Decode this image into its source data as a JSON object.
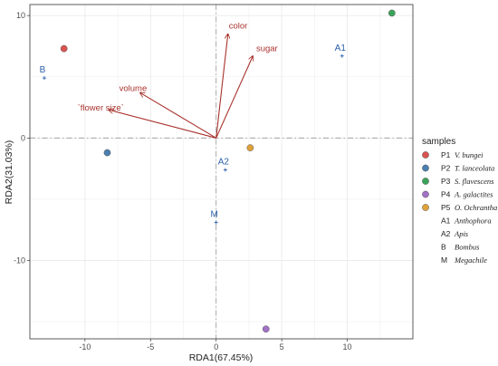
{
  "chart_data": {
    "type": "scatter",
    "title": "",
    "xlabel": "RDA1(67.45%)",
    "ylabel": "RDA2(31.03%)",
    "xlim": [
      -14.2,
      15
    ],
    "ylim": [
      -16.4,
      10.9
    ],
    "xticks": [
      -10,
      -5,
      0,
      5,
      10
    ],
    "yticks": [
      -10,
      0,
      10
    ],
    "grid": true,
    "reference_lines": {
      "x": 0,
      "y": 0
    },
    "legend": {
      "title": "samples",
      "placement": "right",
      "entries": [
        {
          "code": "P1",
          "name": "V. bungei",
          "color": "#d9534f",
          "marker": "circle"
        },
        {
          "code": "P2",
          "name": "T. lanceolata",
          "color": "#4a7fb0",
          "marker": "circle"
        },
        {
          "code": "P3",
          "name": "S. flavescens",
          "color": "#3aa35a",
          "marker": "circle"
        },
        {
          "code": "P4",
          "name": "A. galactites",
          "color": "#a372c6",
          "marker": "circle"
        },
        {
          "code": "P5",
          "name": "O. Ochrantha",
          "color": "#e0a33a",
          "marker": "circle"
        },
        {
          "code": "A1",
          "name": "Anthophora",
          "marker": "plus"
        },
        {
          "code": "A2",
          "name": "Apis",
          "marker": "plus"
        },
        {
          "code": "B",
          "name": "Bombus",
          "marker": "plus"
        },
        {
          "code": "M",
          "name": "Megachile",
          "marker": "plus"
        }
      ]
    },
    "samples": [
      {
        "code": "P1",
        "x": -11.6,
        "y": 7.3
      },
      {
        "code": "P2",
        "x": -8.3,
        "y": -1.2
      },
      {
        "code": "P3",
        "x": 13.4,
        "y": 10.2
      },
      {
        "code": "P4",
        "x": 3.8,
        "y": -15.6
      },
      {
        "code": "P5",
        "x": 2.6,
        "y": -0.8
      }
    ],
    "species": [
      {
        "label": "A1",
        "x": 9.6,
        "y": 6.7
      },
      {
        "label": "A2",
        "x": 0.7,
        "y": -2.6
      },
      {
        "label": "B",
        "x": -13.1,
        "y": 4.9
      },
      {
        "label": "M",
        "x": 0.0,
        "y": -6.9
      }
    ],
    "vectors": [
      {
        "label": "color",
        "x": 0.9,
        "y": 8.5
      },
      {
        "label": "sugar",
        "x": 2.8,
        "y": 6.7
      },
      {
        "label": "volume",
        "x": -5.8,
        "y": 3.7
      },
      {
        "label": "`flower size`",
        "x": -8.2,
        "y": 2.3
      }
    ],
    "colors": {
      "vector": "#a8322d",
      "species": "#2b5fa8",
      "panel_border": "#333333",
      "grid": "#ebebeb",
      "reference_line": "#9a9a9a"
    }
  }
}
